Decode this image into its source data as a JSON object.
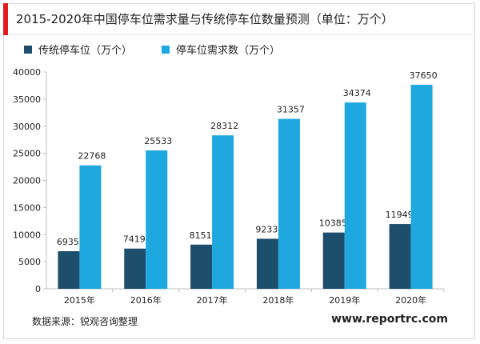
{
  "header": {
    "title": "2015-2020年中国停车位需求量与传统停车位数量预测（单位：万个）"
  },
  "footer": {
    "source": "数据来源：锐观咨询整理",
    "website": "www.reportrc.com"
  },
  "colors": {
    "accent": "#e11d1d",
    "series_dark": "#1d4e6b",
    "series_light": "#1fa8e0"
  },
  "chart_data": {
    "type": "bar",
    "categories": [
      "2015年",
      "2016年",
      "2017年",
      "2018年",
      "2019年",
      "2020年"
    ],
    "series": [
      {
        "name": "传统停车位（万个）",
        "values": [
          6935,
          7419,
          8151,
          9233,
          10385,
          11949
        ],
        "color": "#1d4e6b"
      },
      {
        "name": "停车位需求数（万个）",
        "values": [
          22768,
          25533,
          28312,
          31357,
          34374,
          37650
        ],
        "color": "#1fa8e0"
      }
    ],
    "ylim": [
      0,
      40000
    ],
    "yticks": [
      0,
      5000,
      10000,
      15000,
      20000,
      25000,
      30000,
      35000,
      40000
    ],
    "data_labels": true,
    "grid": false,
    "legend_position": "top-left"
  }
}
